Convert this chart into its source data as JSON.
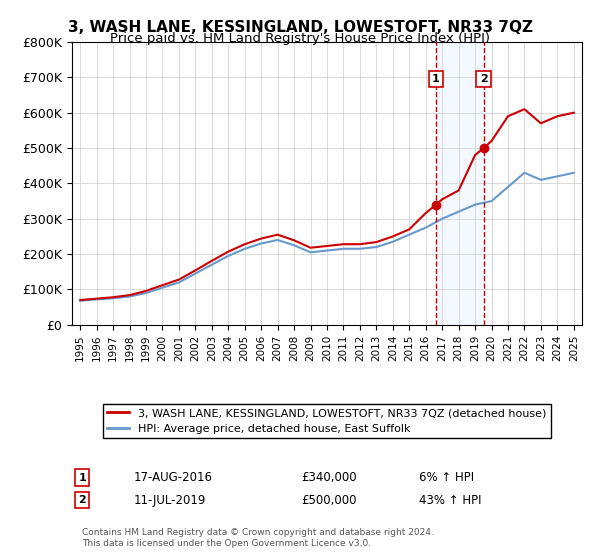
{
  "title": "3, WASH LANE, KESSINGLAND, LOWESTOFT, NR33 7QZ",
  "subtitle": "Price paid vs. HM Land Registry's House Price Index (HPI)",
  "legend_property": "3, WASH LANE, KESSINGLAND, LOWESTOFT, NR33 7QZ (detached house)",
  "legend_hpi": "HPI: Average price, detached house, East Suffolk",
  "sale1_label": "1",
  "sale1_date": "17-AUG-2016",
  "sale1_price": "£340,000",
  "sale1_pct": "6% ↑ HPI",
  "sale1_year": 2016.625,
  "sale1_value": 340000,
  "sale2_label": "2",
  "sale2_date": "11-JUL-2019",
  "sale2_price": "£500,000",
  "sale2_pct": "43% ↑ HPI",
  "sale2_year": 2019.525,
  "sale2_value": 500000,
  "footer": "Contains HM Land Registry data © Crown copyright and database right 2024.\nThis data is licensed under the Open Government Licence v3.0.",
  "property_color": "#cc0000",
  "hpi_color": "#6699cc",
  "shaded_color": "#ddeeff",
  "vline_color": "#cc0000",
  "ylim": [
    0,
    800000
  ],
  "xlim": [
    1994.5,
    2025.5
  ],
  "yticks": [
    0,
    100000,
    200000,
    300000,
    400000,
    500000,
    600000,
    700000,
    800000
  ],
  "ytick_labels": [
    "£0",
    "£100K",
    "£200K",
    "£300K",
    "£400K",
    "£500K",
    "£600K",
    "£700K",
    "£800K"
  ],
  "xticks": [
    1995,
    1996,
    1997,
    1998,
    1999,
    2000,
    2001,
    2002,
    2003,
    2004,
    2005,
    2006,
    2007,
    2008,
    2009,
    2010,
    2011,
    2012,
    2013,
    2014,
    2015,
    2016,
    2017,
    2018,
    2019,
    2020,
    2021,
    2022,
    2023,
    2024,
    2025
  ],
  "hpi_years": [
    1995,
    1996,
    1997,
    1998,
    1999,
    2000,
    2001,
    2002,
    2003,
    2004,
    2005,
    2006,
    2007,
    2008,
    2009,
    2010,
    2011,
    2012,
    2013,
    2014,
    2015,
    2016,
    2017,
    2018,
    2019,
    2020,
    2021,
    2022,
    2023,
    2024,
    2025
  ],
  "hpi_values": [
    68000,
    72000,
    75000,
    80000,
    90000,
    105000,
    120000,
    145000,
    170000,
    195000,
    215000,
    230000,
    240000,
    225000,
    205000,
    210000,
    215000,
    215000,
    220000,
    235000,
    255000,
    275000,
    300000,
    320000,
    340000,
    350000,
    390000,
    430000,
    410000,
    420000,
    430000
  ],
  "property_years": [
    1995,
    1996,
    1997,
    1998,
    1999,
    2000,
    2001,
    2002,
    2003,
    2004,
    2005,
    2006,
    2007,
    2008,
    2009,
    2010,
    2011,
    2012,
    2013,
    2014,
    2015,
    2016,
    2016.625,
    2017,
    2018,
    2019,
    2019.525,
    2020,
    2021,
    2022,
    2023,
    2024,
    2025
  ],
  "property_values": [
    70000,
    74000,
    78000,
    84000,
    96000,
    112000,
    128000,
    154000,
    181000,
    207000,
    228000,
    244000,
    255000,
    239000,
    218000,
    223000,
    228000,
    228000,
    234000,
    250000,
    270000,
    316000,
    340000,
    355000,
    380000,
    480000,
    500000,
    520000,
    590000,
    610000,
    570000,
    590000,
    600000
  ]
}
